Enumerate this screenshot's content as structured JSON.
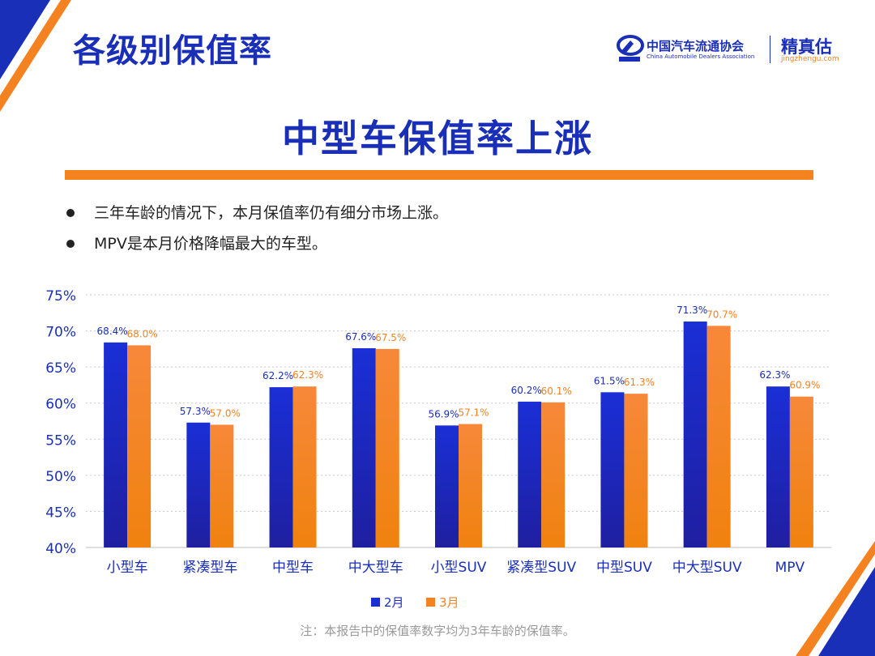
{
  "header": {
    "section_title": "各级别保值率",
    "org_name_cn": "中国汽车流通协会",
    "org_name_en": "China Automobile Dealers Association",
    "brand_cn": "精真估",
    "brand_url": "jingzhengu.com"
  },
  "main_title": "中型车保值率上涨",
  "bullets": [
    "三年车龄的情况下，本月保值率仍有细分市场上涨。",
    "MPV是本月价格降幅最大的车型。"
  ],
  "chart_data": {
    "type": "bar",
    "categories": [
      "小型车",
      "紧凑型车",
      "中型车",
      "中大型车",
      "小型SUV",
      "紧凑型SUV",
      "中型SUV",
      "中大型SUV",
      "MPV"
    ],
    "series": [
      {
        "name": "2月",
        "values": [
          68.4,
          57.3,
          62.2,
          67.6,
          56.9,
          60.2,
          61.5,
          71.3,
          62.3
        ],
        "color": "#1a2fd0"
      },
      {
        "name": "3月",
        "values": [
          68.0,
          57.0,
          62.3,
          67.5,
          57.1,
          60.1,
          61.3,
          70.7,
          60.9
        ],
        "color": "#f58220"
      }
    ],
    "data_labels": [
      [
        "68.4%",
        "57.3%",
        "62.2%",
        "67.6%",
        "56.9%",
        "60.2%",
        "61.5%",
        "71.3%",
        "62.3%"
      ],
      [
        "68.0%",
        "57.0%",
        "62.3%",
        "67.5%",
        "57.1%",
        "60.1%",
        "61.3%",
        "70.7%",
        "60.9%"
      ]
    ],
    "y_ticks": [
      "40%",
      "45%",
      "50%",
      "55%",
      "60%",
      "65%",
      "70%",
      "75%"
    ],
    "ylim": [
      40,
      75
    ],
    "grid": true,
    "legend_position": "bottom"
  },
  "footnote": "注：本报告中的保值率数字均为3年车龄的保值率。"
}
